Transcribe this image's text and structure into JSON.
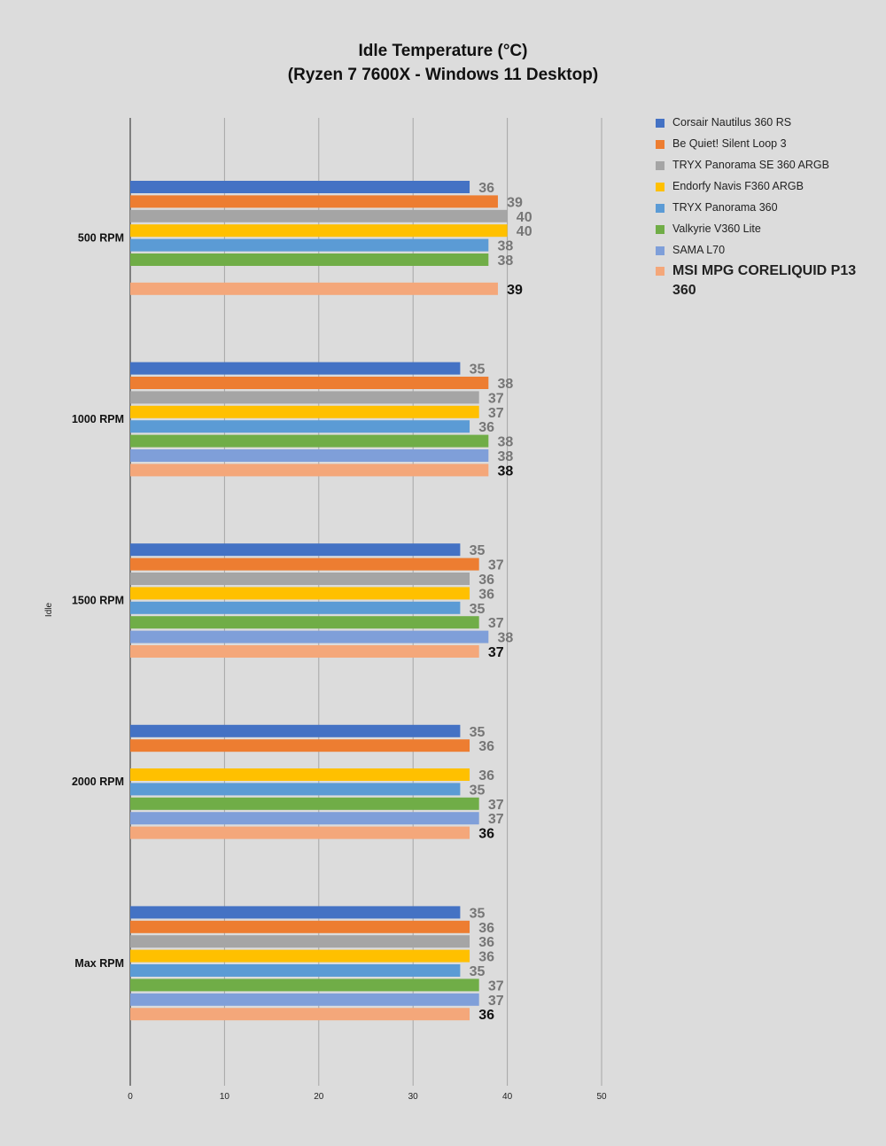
{
  "chart_data": {
    "type": "bar",
    "orientation": "horizontal",
    "title": [
      "Idle Temperature (°C)",
      "(Ryzen 7 7600X - Windows 11 Desktop)"
    ],
    "ylabel": "Idle",
    "xlim": [
      0,
      50
    ],
    "xticks": [
      0,
      10,
      20,
      30,
      40,
      50
    ],
    "grid": true,
    "legend_position": "right",
    "categories": [
      "500 RPM",
      "1000 RPM",
      "1500 RPM",
      "2000 RPM",
      "Max RPM"
    ],
    "series": [
      {
        "name": "Corsair Nautilus 360 RS",
        "color": "#4472c4",
        "values": [
          36,
          35,
          35,
          35,
          35
        ]
      },
      {
        "name": "Be Quiet! Silent Loop 3",
        "color": "#ed7d31",
        "values": [
          39,
          38,
          37,
          36,
          36
        ]
      },
      {
        "name": "TRYX Panorama SE 360 ARGB",
        "color": "#a5a5a5",
        "values": [
          40,
          37,
          36,
          null,
          36
        ]
      },
      {
        "name": "Endorfy Navis F360 ARGB",
        "color": "#ffc000",
        "values": [
          40,
          37,
          36,
          36,
          36
        ]
      },
      {
        "name": "TRYX Panorama 360",
        "color": "#5b9bd5",
        "values": [
          38,
          36,
          35,
          35,
          35
        ]
      },
      {
        "name": "Valkyrie V360 Lite",
        "color": "#70ad47",
        "values": [
          38,
          38,
          37,
          37,
          37
        ]
      },
      {
        "name": "SAMA L70",
        "color": "#7f9fd9",
        "values": [
          null,
          38,
          38,
          37,
          37
        ]
      },
      {
        "name": "MSI MPG CORELIQUID P13 360",
        "color": "#f4a77a",
        "values": [
          39,
          38,
          37,
          36,
          36
        ],
        "highlight": true
      }
    ]
  }
}
